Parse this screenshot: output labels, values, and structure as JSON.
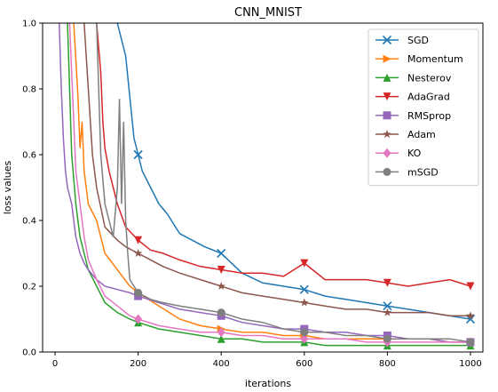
{
  "chart_data": {
    "type": "line",
    "title": "CNN_MNIST",
    "xlabel": "iterations",
    "ylabel": "loss values",
    "xlim": [
      -30,
      1030
    ],
    "ylim": [
      0,
      1.0
    ],
    "xticks": [
      0,
      200,
      400,
      600,
      800,
      1000
    ],
    "yticks": [
      0.0,
      0.2,
      0.4,
      0.6,
      0.8,
      1.0
    ],
    "xtick_labels": [
      "0",
      "200",
      "400",
      "600",
      "800",
      "1000"
    ],
    "ytick_labels": [
      "0.0",
      "0.2",
      "0.4",
      "0.6",
      "0.8",
      "1.0"
    ],
    "legend_position": "top-right",
    "grid": false,
    "series": [
      {
        "name": "SGD",
        "color": "#1f77b4",
        "marker": "x",
        "x": [
          150,
          170,
          190,
          210,
          230,
          250,
          270,
          300,
          330,
          360,
          400,
          450,
          500,
          550,
          600,
          650,
          700,
          750,
          800,
          850,
          900,
          950,
          1000
        ],
        "y": [
          1.0,
          0.9,
          0.65,
          0.55,
          0.5,
          0.45,
          0.42,
          0.36,
          0.34,
          0.32,
          0.3,
          0.24,
          0.21,
          0.2,
          0.19,
          0.17,
          0.16,
          0.15,
          0.14,
          0.13,
          0.12,
          0.11,
          0.1
        ]
      },
      {
        "name": "Momentum",
        "color": "#ff7f0e",
        "marker": "triangle-right",
        "x": [
          45,
          55,
          60,
          65,
          70,
          80,
          100,
          120,
          150,
          180,
          200,
          250,
          300,
          350,
          400,
          450,
          500,
          550,
          600,
          650,
          700,
          750,
          800,
          850,
          900,
          950,
          1000
        ],
        "y": [
          1.0,
          0.78,
          0.62,
          0.7,
          0.55,
          0.45,
          0.4,
          0.3,
          0.25,
          0.2,
          0.18,
          0.14,
          0.1,
          0.08,
          0.07,
          0.06,
          0.06,
          0.05,
          0.05,
          0.04,
          0.04,
          0.04,
          0.04,
          0.04,
          0.04,
          0.03,
          0.03
        ]
      },
      {
        "name": "Nesterov",
        "color": "#2ca02c",
        "marker": "triangle-up",
        "x": [
          30,
          40,
          50,
          60,
          70,
          80,
          100,
          120,
          150,
          180,
          200,
          250,
          300,
          350,
          400,
          450,
          500,
          550,
          600,
          650,
          700,
          750,
          800,
          850,
          900,
          950,
          1000
        ],
        "y": [
          1.0,
          0.6,
          0.45,
          0.35,
          0.3,
          0.25,
          0.2,
          0.15,
          0.12,
          0.1,
          0.09,
          0.07,
          0.06,
          0.05,
          0.04,
          0.04,
          0.03,
          0.03,
          0.03,
          0.02,
          0.02,
          0.02,
          0.02,
          0.02,
          0.02,
          0.02,
          0.02
        ]
      },
      {
        "name": "AdaGrad",
        "color": "#d62728",
        "marker": "triangle-down",
        "x": [
          100,
          110,
          115,
          120,
          130,
          150,
          170,
          200,
          230,
          260,
          300,
          350,
          400,
          450,
          500,
          550,
          600,
          650,
          700,
          750,
          800,
          850,
          900,
          950,
          1000
        ],
        "y": [
          1.0,
          0.85,
          0.7,
          0.62,
          0.55,
          0.45,
          0.38,
          0.34,
          0.31,
          0.3,
          0.28,
          0.26,
          0.25,
          0.24,
          0.24,
          0.23,
          0.27,
          0.22,
          0.22,
          0.22,
          0.21,
          0.2,
          0.21,
          0.22,
          0.2
        ]
      },
      {
        "name": "RMSprop",
        "color": "#9467bd",
        "marker": "square",
        "x": [
          10,
          15,
          20,
          25,
          30,
          40,
          50,
          60,
          70,
          80,
          100,
          120,
          150,
          180,
          200,
          250,
          300,
          350,
          400,
          450,
          500,
          550,
          600,
          650,
          700,
          750,
          800,
          850,
          900,
          950,
          1000
        ],
        "y": [
          1.0,
          0.8,
          0.65,
          0.55,
          0.5,
          0.45,
          0.35,
          0.3,
          0.27,
          0.25,
          0.22,
          0.2,
          0.19,
          0.18,
          0.17,
          0.15,
          0.13,
          0.12,
          0.11,
          0.09,
          0.08,
          0.07,
          0.07,
          0.06,
          0.06,
          0.05,
          0.05,
          0.04,
          0.04,
          0.03,
          0.03
        ]
      },
      {
        "name": "Adam",
        "color": "#8c564b",
        "marker": "star",
        "x": [
          70,
          80,
          90,
          100,
          120,
          150,
          170,
          200,
          230,
          260,
          300,
          350,
          400,
          450,
          500,
          550,
          600,
          650,
          700,
          750,
          800,
          850,
          900,
          950,
          1000
        ],
        "y": [
          1.0,
          0.8,
          0.6,
          0.5,
          0.38,
          0.34,
          0.32,
          0.3,
          0.28,
          0.26,
          0.24,
          0.22,
          0.2,
          0.18,
          0.17,
          0.16,
          0.15,
          0.14,
          0.13,
          0.13,
          0.12,
          0.12,
          0.12,
          0.11,
          0.11
        ]
      },
      {
        "name": "KO",
        "color": "#e377c2",
        "marker": "diamond",
        "x": [
          35,
          45,
          50,
          60,
          70,
          80,
          100,
          120,
          150,
          180,
          200,
          250,
          300,
          350,
          400,
          450,
          500,
          550,
          600,
          650,
          700,
          750,
          800,
          850,
          900,
          950,
          1000
        ],
        "y": [
          1.0,
          0.7,
          0.55,
          0.45,
          0.35,
          0.28,
          0.22,
          0.17,
          0.14,
          0.11,
          0.1,
          0.08,
          0.07,
          0.06,
          0.06,
          0.05,
          0.05,
          0.04,
          0.04,
          0.04,
          0.04,
          0.03,
          0.03,
          0.03,
          0.03,
          0.03,
          0.03
        ]
      },
      {
        "name": "mSGD",
        "color": "#7f7f7f",
        "marker": "circle",
        "x": [
          100,
          110,
          120,
          130,
          140,
          150,
          155,
          160,
          165,
          170,
          175,
          180,
          200,
          230,
          260,
          300,
          350,
          400,
          450,
          500,
          550,
          600,
          650,
          700,
          750,
          800,
          850,
          900,
          950,
          1000
        ],
        "y": [
          1.0,
          0.6,
          0.45,
          0.4,
          0.35,
          0.5,
          0.77,
          0.45,
          0.7,
          0.4,
          0.3,
          0.22,
          0.18,
          0.16,
          0.15,
          0.14,
          0.13,
          0.12,
          0.1,
          0.09,
          0.07,
          0.06,
          0.06,
          0.05,
          0.05,
          0.04,
          0.04,
          0.04,
          0.04,
          0.03
        ]
      }
    ]
  }
}
